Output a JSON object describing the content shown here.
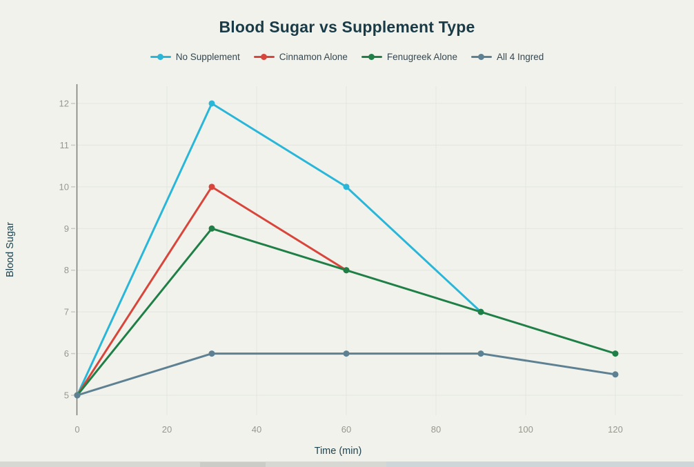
{
  "chart": {
    "title": "Blood Sugar vs Supplement Type",
    "xlabel": "Time (min)",
    "ylabel": "Blood Sugar"
  },
  "chart_data": {
    "type": "line",
    "title": "Blood Sugar vs Supplement Type",
    "xlabel": "Time (min)",
    "ylabel": "Blood Sugar",
    "x_ticks": [
      0,
      20,
      40,
      60,
      80,
      100,
      120
    ],
    "y_ticks": [
      5,
      6,
      7,
      8,
      9,
      10,
      11,
      12
    ],
    "xlim": [
      0,
      135
    ],
    "ylim": [
      4.6,
      12.5
    ],
    "grid": true,
    "legend_position": "top-center",
    "marker": "circle",
    "series": [
      {
        "name": "No Supplement",
        "color": "#29b6d8",
        "x": [
          0,
          30,
          60,
          90
        ],
        "y": [
          5,
          12,
          10,
          7
        ]
      },
      {
        "name": "Cinnamon Alone",
        "color": "#d8453b",
        "x": [
          0,
          30,
          60
        ],
        "y": [
          5,
          10,
          8
        ]
      },
      {
        "name": "Fenugreek Alone",
        "color": "#207f47",
        "x": [
          0,
          30,
          60,
          90,
          120
        ],
        "y": [
          5,
          9,
          8,
          7,
          6
        ]
      },
      {
        "name": "All 4 Ingred",
        "color": "#5d8193",
        "x": [
          0,
          30,
          60,
          90,
          120
        ],
        "y": [
          5,
          6,
          6,
          6,
          5.5
        ]
      }
    ]
  },
  "colors": {
    "background": "#f1f2ec",
    "title_text": "#183b47",
    "axis_title_text": "#1d4450",
    "legend_text": "#36474f",
    "tick_text": "#97978f",
    "gridline": "#e4e5df",
    "tick_dash": "#c9cac4",
    "axis_line": "#7b7b77",
    "bottom_strip": "#d7d8d3",
    "bottom_strip_right": "#cfd6da",
    "bottom_strip_thumb": "#cbccc7"
  }
}
